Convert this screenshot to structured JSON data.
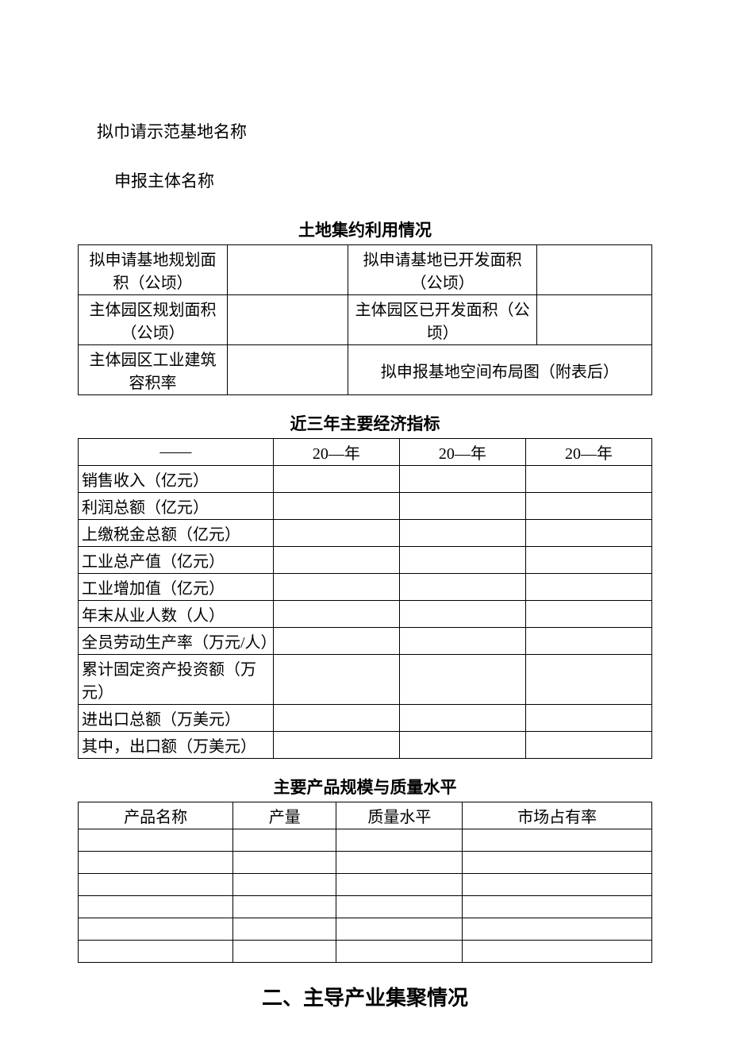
{
  "fields": {
    "line1": "拟巾请示范基地名称",
    "line2": "申报主体名称"
  },
  "land": {
    "title": "土地集约利用情况",
    "rows": [
      {
        "left_label": "拟申请基地规划面积（公顷）",
        "left_value": "",
        "right_label": "拟申请基地已开发面积（公顷）",
        "right_value": ""
      },
      {
        "left_label": "主体园区规划面积（公顷）",
        "left_value": "",
        "right_label": "主体园区已开发面积（公顷）",
        "right_value": ""
      }
    ],
    "row3": {
      "left_label": "主体园区工业建筑容积率",
      "left_value": "",
      "right_merged": "拟申报基地空间布局图（附表后）"
    }
  },
  "economics": {
    "title": "近三年主要经济指标",
    "header_blank": "——",
    "years": [
      "20—年",
      "20—年",
      "20—年"
    ],
    "metrics": [
      "销售收入（亿元）",
      "利润总额（亿元）",
      "上缴税金总额（亿元）",
      "工业总产值（亿元）",
      "工业增加值（亿元）",
      "年末从业人数（人）",
      "全员劳动生产率（万元/人）",
      "累计固定资产投资额（万元）",
      "进出口总额（万美元）",
      "其中，出口额（万美元）"
    ]
  },
  "products": {
    "title": "主要产品规模与质量水平",
    "columns": [
      "产品名称",
      "产量",
      "质量水平",
      "市场占有率"
    ],
    "row_count": 6
  },
  "section2": {
    "title": "二、主导产业集聚情况"
  }
}
